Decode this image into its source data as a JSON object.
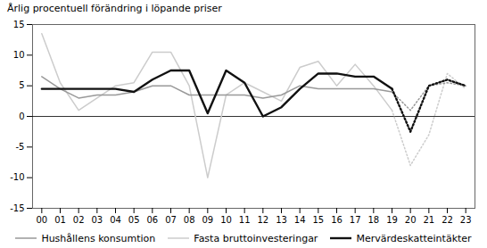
{
  "chart_data": {
    "type": "line",
    "ylabel": "Årlig procentuell förändring i löpande priser",
    "x": [
      2000,
      2001,
      2002,
      2003,
      2004,
      2005,
      2006,
      2007,
      2008,
      2009,
      2010,
      2011,
      2012,
      2013,
      2014,
      2015,
      2016,
      2017,
      2018,
      2019,
      2020,
      2021,
      2022,
      2023
    ],
    "series": [
      {
        "name": "Fasta bruttoinvesteringar",
        "color": "#cccccc",
        "line_style": "solid",
        "values": [
          13.5,
          5.5,
          1.0,
          3.0,
          5.0,
          5.5,
          10.5,
          10.5,
          5.0,
          -10.0,
          3.5,
          5.5,
          4.0,
          2.5,
          8.0,
          9.0,
          5.0,
          8.5,
          5.0,
          1.0,
          null,
          null,
          null,
          null
        ]
      },
      {
        "name": "Hushållens konsumtion",
        "color": "#999999",
        "line_style": "solid",
        "values": [
          6.5,
          4.5,
          3.0,
          3.5,
          3.5,
          4.0,
          5.0,
          5.0,
          3.5,
          3.5,
          3.5,
          3.5,
          3.0,
          3.5,
          5.0,
          4.5,
          4.5,
          4.5,
          4.5,
          4.0,
          null,
          null,
          null,
          null
        ]
      },
      {
        "name": "Mervärdeskatteintäkter",
        "color": "#111111",
        "line_style": "solid",
        "values": [
          4.5,
          4.5,
          4.5,
          4.5,
          4.5,
          4.0,
          6.0,
          7.5,
          7.5,
          0.5,
          7.5,
          5.5,
          0.0,
          1.5,
          4.5,
          7.0,
          7.0,
          6.5,
          6.5,
          4.5,
          null,
          null,
          null,
          null
        ]
      },
      {
        "name": "Fasta bruttoinvesteringar",
        "color": "#cccccc",
        "line_style": "dotted",
        "values": [
          null,
          null,
          null,
          null,
          null,
          null,
          null,
          null,
          null,
          null,
          null,
          null,
          null,
          null,
          null,
          null,
          null,
          null,
          null,
          1.0,
          -8.0,
          -3.0,
          7.0,
          4.5
        ]
      },
      {
        "name": "Hushållens konsumtion",
        "color": "#999999",
        "line_style": "dotted",
        "values": [
          null,
          null,
          null,
          null,
          null,
          null,
          null,
          null,
          null,
          null,
          null,
          null,
          null,
          null,
          null,
          null,
          null,
          null,
          null,
          4.0,
          1.0,
          5.0,
          5.5,
          5.0
        ]
      },
      {
        "name": "Mervärdeskatteintäkter",
        "color": "#111111",
        "line_style": "dotted",
        "values": [
          null,
          null,
          null,
          null,
          null,
          null,
          null,
          null,
          null,
          null,
          null,
          null,
          null,
          null,
          null,
          null,
          null,
          null,
          null,
          4.5,
          -2.5,
          5.0,
          6.0,
          5.0
        ]
      }
    ],
    "legend_order": [
      "Hushållens konsumtion",
      "Fasta bruttoinvesteringar",
      "Mervärdeskatteintäkter"
    ],
    "xlim": [
      1999.5,
      2023.5
    ],
    "xticks": [
      {
        "value": 2000,
        "label": "00"
      },
      {
        "value": 2001,
        "label": "01"
      },
      {
        "value": 2002,
        "label": "02"
      },
      {
        "value": 2003,
        "label": "03"
      },
      {
        "value": 2004,
        "label": "04"
      },
      {
        "value": 2005,
        "label": "05"
      },
      {
        "value": 2006,
        "label": "06"
      },
      {
        "value": 2007,
        "label": "07"
      },
      {
        "value": 2008,
        "label": "08"
      },
      {
        "value": 2009,
        "label": "09"
      },
      {
        "value": 2010,
        "label": "10"
      },
      {
        "value": 2011,
        "label": "11"
      },
      {
        "value": 2012,
        "label": "12"
      },
      {
        "value": 2013,
        "label": "13"
      },
      {
        "value": 2014,
        "label": "14"
      },
      {
        "value": 2015,
        "label": "15"
      },
      {
        "value": 2016,
        "label": "16"
      },
      {
        "value": 2017,
        "label": "17"
      },
      {
        "value": 2018,
        "label": "18"
      },
      {
        "value": 2019,
        "label": "19"
      },
      {
        "value": 2020,
        "label": "20"
      },
      {
        "value": 2021,
        "label": "21"
      },
      {
        "value": 2022,
        "label": "22"
      },
      {
        "value": 2023,
        "label": "23"
      }
    ],
    "ylim": [
      -15,
      15
    ],
    "yticks": [
      -15,
      -10,
      -5,
      0,
      5,
      10,
      15
    ],
    "reference_lines": [
      0
    ],
    "grid": false,
    "legend": "bottom"
  }
}
